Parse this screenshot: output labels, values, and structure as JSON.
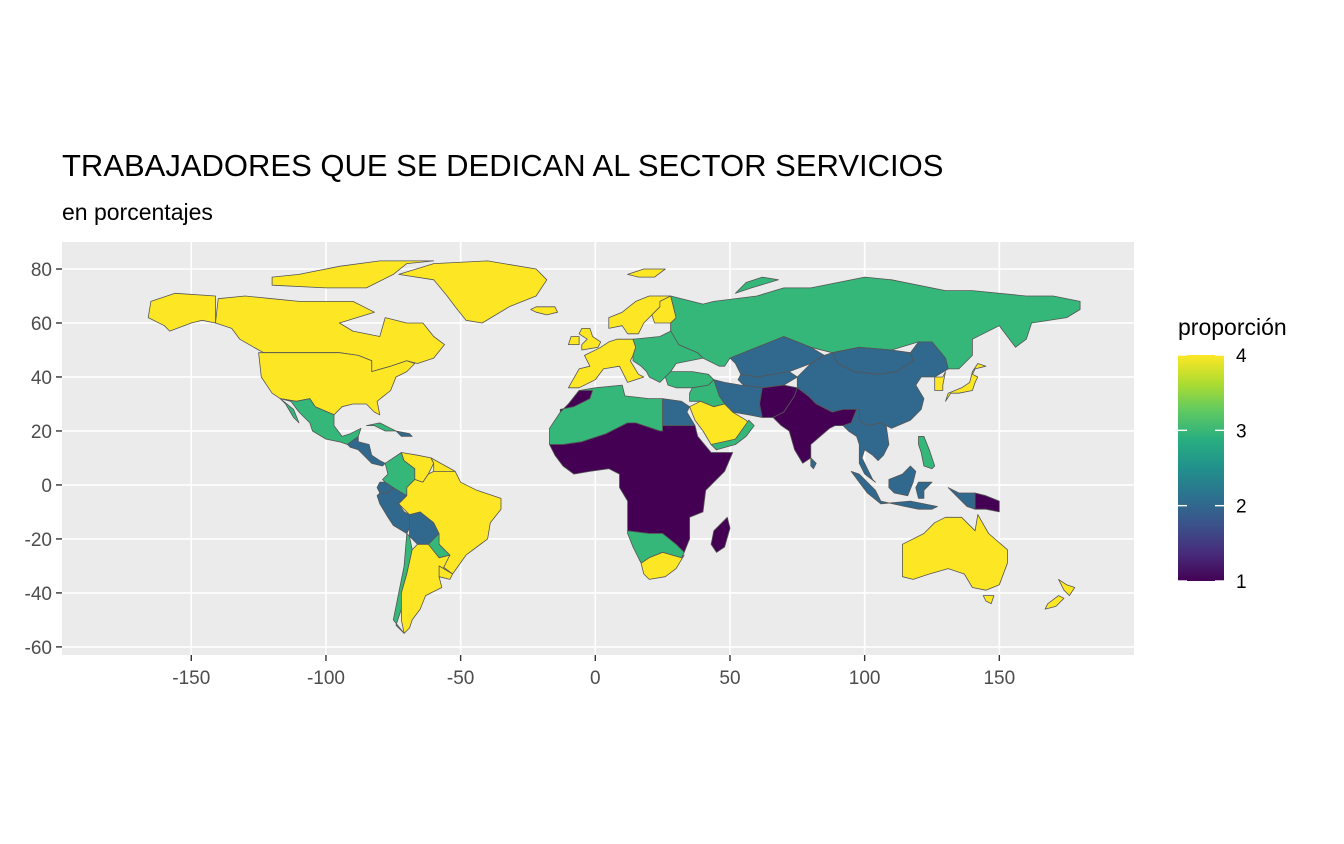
{
  "title": "TRABAJADORES QUE SE DEDICAN AL SECTOR SERVICIOS",
  "subtitle": "en porcentajes",
  "legend": {
    "title": "proporción",
    "ticks": [
      "1",
      "2",
      "3",
      "4"
    ],
    "values": [
      1,
      2,
      3,
      4
    ],
    "colors": [
      "#440154",
      "#31688e",
      "#35b779",
      "#fde725"
    ]
  },
  "axes": {
    "x_ticks": [
      "-150",
      "-100",
      "-50",
      "0",
      "50",
      "100",
      "150"
    ],
    "x_values": [
      -150,
      -100,
      -50,
      0,
      50,
      100,
      150
    ],
    "y_ticks": [
      "80",
      "60",
      "40",
      "20",
      "0",
      "-20",
      "-40",
      "-60"
    ],
    "y_values": [
      80,
      60,
      40,
      20,
      0,
      -20,
      -40,
      -60
    ],
    "xlim": [
      -198,
      200
    ],
    "ylim": [
      -63,
      90
    ]
  },
  "colors": {
    "panel_background": "#ebebeb",
    "grid": "#ffffff",
    "border": "#555555",
    "ocean": "#ebebeb"
  },
  "regions": [
    {
      "name": "Canada",
      "value": 4
    },
    {
      "name": "United States",
      "value": 4
    },
    {
      "name": "Mexico",
      "value": 3
    },
    {
      "name": "Central America",
      "value": 2
    },
    {
      "name": "Colombia",
      "value": 3
    },
    {
      "name": "Venezuela",
      "value": 4
    },
    {
      "name": "Peru",
      "value": 2
    },
    {
      "name": "Bolivia",
      "value": 2
    },
    {
      "name": "Brazil",
      "value": 4
    },
    {
      "name": "Chile",
      "value": 3
    },
    {
      "name": "Argentina",
      "value": 4
    },
    {
      "name": "Greenland",
      "value": 4
    },
    {
      "name": "Western Europe",
      "value": 4
    },
    {
      "name": "Eastern Europe",
      "value": 3
    },
    {
      "name": "Russia",
      "value": 3
    },
    {
      "name": "Kazakhstan",
      "value": 2
    },
    {
      "name": "China",
      "value": 2
    },
    {
      "name": "Mongolia",
      "value": 2
    },
    {
      "name": "Japan",
      "value": 4
    },
    {
      "name": "North Africa",
      "value": 3
    },
    {
      "name": "Egypt",
      "value": 2
    },
    {
      "name": "Saudi Arabia",
      "value": 4
    },
    {
      "name": "Sub-Saharan Africa",
      "value": 1
    },
    {
      "name": "Southern Africa",
      "value": 3
    },
    {
      "name": "South Africa",
      "value": 4
    },
    {
      "name": "Madagascar",
      "value": 1
    },
    {
      "name": "South Asia",
      "value": 1
    },
    {
      "name": "Southeast Asia",
      "value": 2
    },
    {
      "name": "Indonesia",
      "value": 2
    },
    {
      "name": "Papua New Guinea",
      "value": 1
    },
    {
      "name": "Australia",
      "value": 4
    },
    {
      "name": "New Zealand",
      "value": 4
    }
  ]
}
